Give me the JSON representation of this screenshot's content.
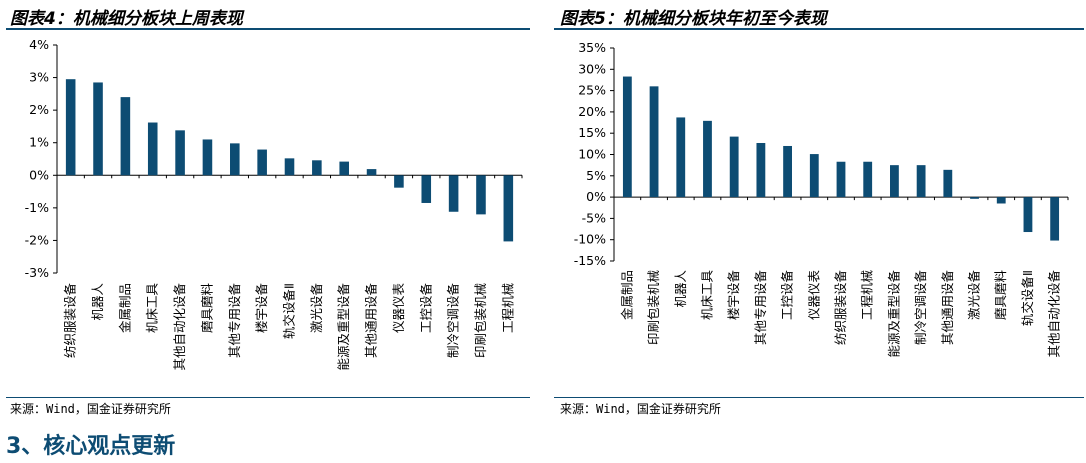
{
  "theme": {
    "bar_color": "#0d4c73",
    "accent": "#0d4c73"
  },
  "left": {
    "title": "图表4：机械细分板块上周表现",
    "source": "来源：Wind，国金证券研究所"
  },
  "right": {
    "title": "图表5：机械细分板块年初至今表现",
    "source": "来源：Wind，国金证券研究所"
  },
  "section": {
    "heading": "3、核心观点更新"
  },
  "chart_data": [
    {
      "type": "bar",
      "title": "图表4：机械细分板块上周表现",
      "xlabel": "",
      "ylabel": "",
      "ylim": [
        -3,
        4
      ],
      "yticks": [
        "-3%",
        "-2%",
        "-1%",
        "0%",
        "1%",
        "2%",
        "3%",
        "4%"
      ],
      "unit": "%",
      "grid": false,
      "categories": [
        "纺织服装设备",
        "机器人",
        "金属制品",
        "机床工具",
        "其他自动化设备",
        "磨具磨料",
        "其他专用设备",
        "楼宇设备",
        "轨交设备Ⅱ",
        "激光设备",
        "能源及重型设备",
        "其他通用设备",
        "仪器仪表",
        "工控设备",
        "制冷空调设备",
        "印刷包装机械",
        "工程机械"
      ],
      "values": [
        2.95,
        2.85,
        2.4,
        1.62,
        1.38,
        1.1,
        0.98,
        0.79,
        0.52,
        0.46,
        0.42,
        0.19,
        -0.38,
        -0.85,
        -1.12,
        -1.2,
        -2.03
      ]
    },
    {
      "type": "bar",
      "title": "图表5：机械细分板块年初至今表现",
      "xlabel": "",
      "ylabel": "",
      "ylim": [
        -15,
        35
      ],
      "yticks": [
        "-15%",
        "-10%",
        "-5%",
        "0%",
        "5%",
        "10%",
        "15%",
        "20%",
        "25%",
        "30%",
        "35%"
      ],
      "unit": "%",
      "grid": false,
      "categories": [
        "金属制品",
        "印刷包装机械",
        "机器人",
        "机床工具",
        "楼宇设备",
        "其他专用设备",
        "工控设备",
        "仪器仪表",
        "纺织服装设备",
        "工程机械",
        "能源及重型设备",
        "制冷空调设备",
        "其他通用设备",
        "激光设备",
        "磨具磨料",
        "轨交设备Ⅱ",
        "其他自动化设备"
      ],
      "values": [
        28.3,
        26.0,
        18.7,
        17.9,
        14.2,
        12.7,
        12.0,
        10.1,
        8.3,
        8.3,
        7.5,
        7.5,
        6.4,
        -0.4,
        -1.5,
        -8.2,
        -10.2
      ]
    }
  ]
}
